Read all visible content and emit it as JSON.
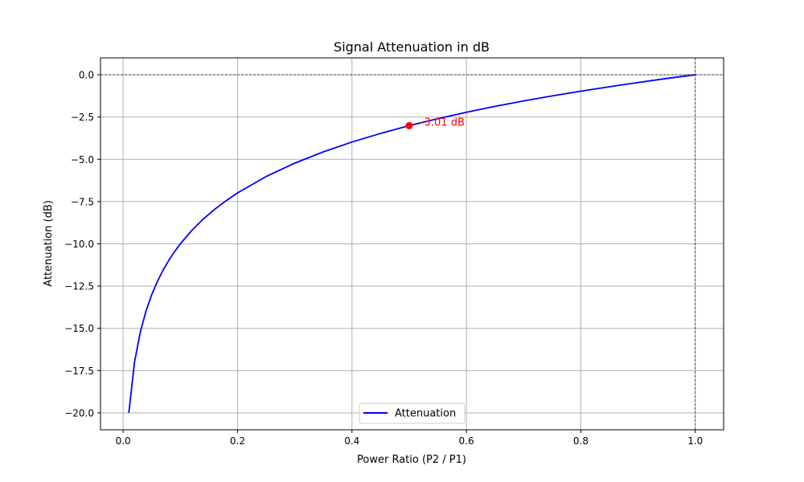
{
  "chart_data": {
    "type": "line",
    "title": "Signal Attenuation in dB",
    "xlabel": "Power Ratio (P2 / P1)",
    "ylabel": "Attenuation (dB)",
    "xlim": [
      -0.0395,
      1.0495
    ],
    "ylim": [
      -21.0,
      1.0
    ],
    "xticks": [
      0.0,
      0.2,
      0.4,
      0.6,
      0.8,
      1.0
    ],
    "xtick_labels": [
      "0.0",
      "0.2",
      "0.4",
      "0.6",
      "0.8",
      "1.0"
    ],
    "yticks": [
      0.0,
      -2.5,
      -5.0,
      -7.5,
      -10.0,
      -12.5,
      -15.0,
      -17.5,
      -20.0
    ],
    "ytick_labels": [
      "0.0",
      "−2.5",
      "−5.0",
      "−7.5",
      "−10.0",
      "−12.5",
      "−15.0",
      "−17.5",
      "−20.0"
    ],
    "grid": true,
    "legend_position": "lower-center",
    "series": [
      {
        "name": "Attenuation",
        "color": "#0000ff",
        "x": [
          0.01,
          0.02,
          0.03,
          0.04,
          0.05,
          0.06,
          0.07,
          0.08,
          0.09,
          0.1,
          0.12,
          0.14,
          0.16,
          0.18,
          0.2,
          0.25,
          0.3,
          0.35,
          0.4,
          0.45,
          0.5,
          0.55,
          0.6,
          0.65,
          0.7,
          0.75,
          0.8,
          0.85,
          0.9,
          0.95,
          1.0
        ],
        "y": [
          -20.0,
          -16.99,
          -15.23,
          -13.98,
          -13.01,
          -12.22,
          -11.55,
          -10.97,
          -10.46,
          -10.0,
          -9.21,
          -8.54,
          -7.96,
          -7.45,
          -6.99,
          -6.02,
          -5.23,
          -4.56,
          -3.98,
          -3.47,
          -3.01,
          -2.6,
          -2.22,
          -1.87,
          -1.55,
          -1.25,
          -0.97,
          -0.71,
          -0.46,
          -0.22,
          0.0
        ]
      }
    ],
    "reference_lines": {
      "color": "#000000",
      "y": 0.0,
      "x": 1.0
    },
    "annotation": {
      "x": 0.5,
      "y": -3.01,
      "text": "-3.01 dB",
      "color": "#ff0000"
    }
  }
}
